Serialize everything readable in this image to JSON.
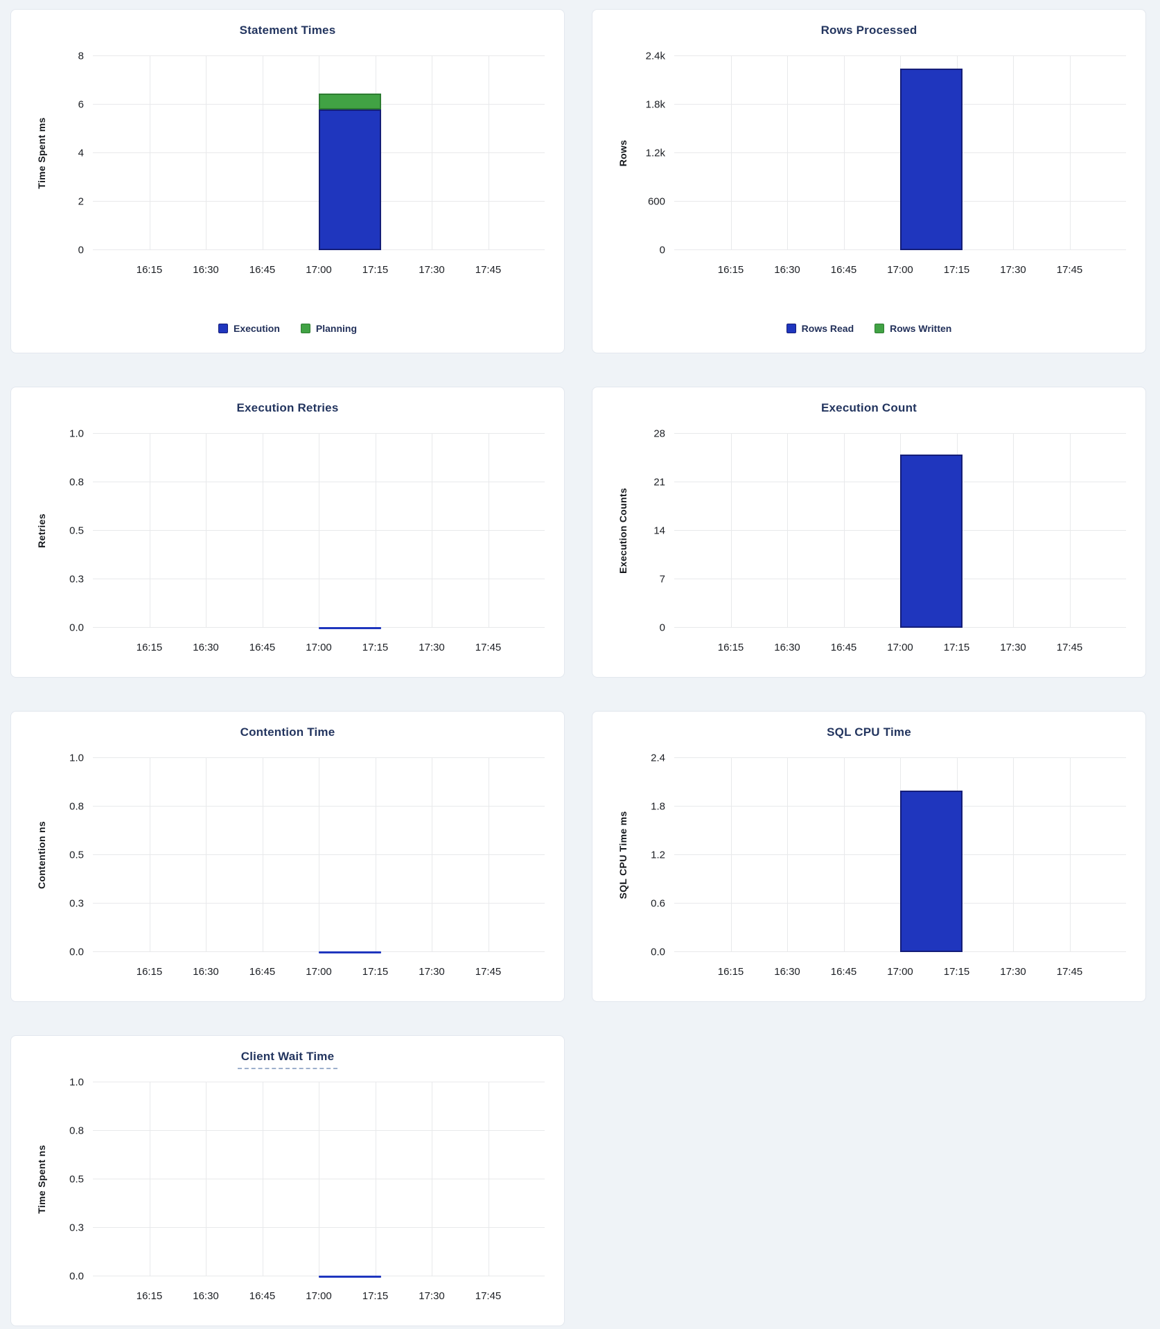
{
  "colors": {
    "page_bg": "#eff3f7",
    "panel_bg": "#ffffff",
    "panel_border": "#e2e7ee",
    "title_text": "#23355f",
    "axis_label_text": "#15181c",
    "tick_text": "#1c1f24",
    "gridline": "#e8e9eb",
    "legend_text": "#22305a",
    "title_underline": "#9db0cc",
    "series_blue": "#1f36be",
    "series_blue_border": "#141d78",
    "series_green": "#41a244",
    "series_green_border": "#2d7c31"
  },
  "layout": {
    "bar_left_pct": 50,
    "bar_width_pct": 13.8,
    "grid_on": true,
    "legend_position": "bottom-center"
  },
  "chart_data": [
    {
      "type": "bar",
      "stacked": true,
      "title": "Statement Times",
      "title_tooltip": false,
      "ylabel": "Time Spent ms",
      "ylim": [
        0,
        8
      ],
      "yticks": [
        "0",
        "2",
        "4",
        "6",
        "8"
      ],
      "xticks": [
        "16:15",
        "16:30",
        "16:45",
        "17:00",
        "17:15",
        "17:30",
        "17:45"
      ],
      "x_window": "17:00-17:15",
      "legend": true,
      "series": [
        {
          "name": "Execution",
          "color": "blue",
          "value": 5.8
        },
        {
          "name": "Planning",
          "color": "green",
          "value": 0.65
        }
      ]
    },
    {
      "type": "bar",
      "stacked": true,
      "title": "Rows Processed",
      "title_tooltip": false,
      "ylabel": "Rows",
      "ylim": [
        0,
        2400
      ],
      "yticks": [
        "0",
        "600",
        "1.2k",
        "1.8k",
        "2.4k"
      ],
      "xticks": [
        "16:15",
        "16:30",
        "16:45",
        "17:00",
        "17:15",
        "17:30",
        "17:45"
      ],
      "x_window": "17:00-17:15",
      "legend": true,
      "series": [
        {
          "name": "Rows Read",
          "color": "blue",
          "value": 2250
        },
        {
          "name": "Rows Written",
          "color": "green",
          "value": 0
        }
      ]
    },
    {
      "type": "line",
      "stacked": false,
      "title": "Execution Retries",
      "title_tooltip": false,
      "ylabel": "Retries",
      "ylim": [
        0,
        1
      ],
      "yticks": [
        "0.0",
        "0.3",
        "0.5",
        "0.8",
        "1.0"
      ],
      "xticks": [
        "16:15",
        "16:30",
        "16:45",
        "17:00",
        "17:15",
        "17:30",
        "17:45"
      ],
      "x_window": "17:00-17:15",
      "legend": false,
      "series": [
        {
          "name": "Retries",
          "color": "blue",
          "value": 0
        }
      ]
    },
    {
      "type": "bar",
      "stacked": false,
      "title": "Execution Count",
      "title_tooltip": false,
      "ylabel": "Execution Counts",
      "ylim": [
        0,
        28
      ],
      "yticks": [
        "0",
        "7",
        "14",
        "21",
        "28"
      ],
      "xticks": [
        "16:15",
        "16:30",
        "16:45",
        "17:00",
        "17:15",
        "17:30",
        "17:45"
      ],
      "x_window": "17:00-17:15",
      "legend": false,
      "series": [
        {
          "name": "Execution Count",
          "color": "blue",
          "value": 25
        }
      ]
    },
    {
      "type": "line",
      "stacked": false,
      "title": "Contention Time",
      "title_tooltip": false,
      "ylabel": "Contention ns",
      "ylim": [
        0,
        1
      ],
      "yticks": [
        "0.0",
        "0.3",
        "0.5",
        "0.8",
        "1.0"
      ],
      "xticks": [
        "16:15",
        "16:30",
        "16:45",
        "17:00",
        "17:15",
        "17:30",
        "17:45"
      ],
      "x_window": "17:00-17:15",
      "legend": false,
      "series": [
        {
          "name": "Contention Time",
          "color": "blue",
          "value": 0
        }
      ]
    },
    {
      "type": "bar",
      "stacked": false,
      "title": "SQL CPU Time",
      "title_tooltip": false,
      "ylabel": "SQL CPU Time ms",
      "ylim": [
        0,
        2.4
      ],
      "yticks": [
        "0.0",
        "0.6",
        "1.2",
        "1.8",
        "2.4"
      ],
      "xticks": [
        "16:15",
        "16:30",
        "16:45",
        "17:00",
        "17:15",
        "17:30",
        "17:45"
      ],
      "x_window": "17:00-17:15",
      "legend": false,
      "series": [
        {
          "name": "SQL CPU Time",
          "color": "blue",
          "value": 2.0
        }
      ]
    },
    {
      "type": "line",
      "stacked": false,
      "title": "Client Wait Time",
      "title_tooltip": true,
      "ylabel": "Time Spent ns",
      "ylim": [
        0,
        1
      ],
      "yticks": [
        "0.0",
        "0.3",
        "0.5",
        "0.8",
        "1.0"
      ],
      "xticks": [
        "16:15",
        "16:30",
        "16:45",
        "17:00",
        "17:15",
        "17:30",
        "17:45"
      ],
      "x_window": "17:00-17:15",
      "legend": false,
      "series": [
        {
          "name": "Client Wait Time",
          "color": "blue",
          "value": 0
        }
      ]
    }
  ]
}
